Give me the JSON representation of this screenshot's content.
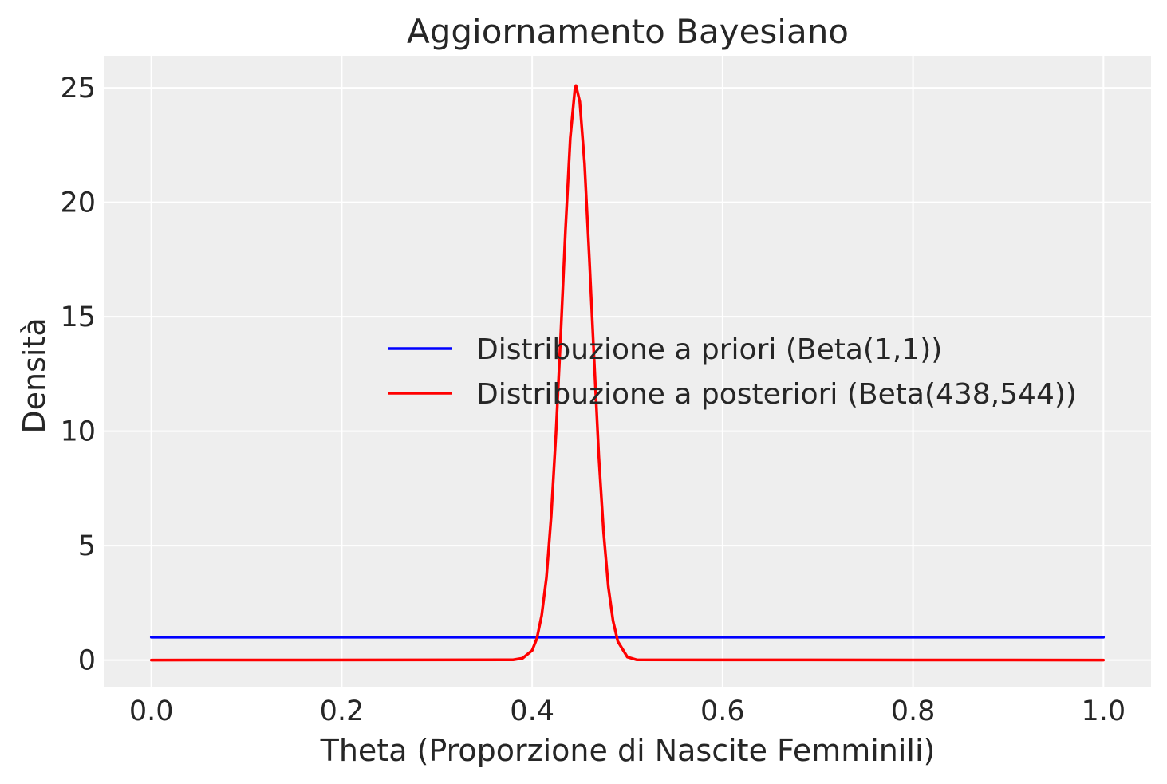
{
  "chart_data": {
    "type": "line",
    "title": "Aggiornamento Bayesiano",
    "xlabel": "Theta (Proporzione di Nascite Femminili)",
    "ylabel": "Densità",
    "xlim": [
      -0.05,
      1.05
    ],
    "ylim": [
      -1.2,
      26.4
    ],
    "x_ticks": [
      0.0,
      0.2,
      0.4,
      0.6,
      0.8,
      1.0
    ],
    "x_tick_labels": [
      "0.0",
      "0.2",
      "0.4",
      "0.6",
      "0.8",
      "1.0"
    ],
    "y_ticks": [
      0,
      5,
      10,
      15,
      20,
      25
    ],
    "y_tick_labels": [
      "0",
      "5",
      "10",
      "15",
      "20",
      "25"
    ],
    "grid": true,
    "legend_position": "center-right",
    "background_color": "#eeeeee",
    "grid_color": "#ffffff",
    "series": [
      {
        "name": "Distribuzione a priori (Beta(1,1))",
        "color": "#0000ff",
        "x": [
          0.0,
          1.0
        ],
        "y": [
          1.0,
          1.0
        ]
      },
      {
        "name": "Distribuzione a posteriori (Beta(438,544))",
        "color": "#ff0000",
        "x": [
          0.0,
          0.38,
          0.39,
          0.4,
          0.405,
          0.41,
          0.415,
          0.42,
          0.425,
          0.43,
          0.435,
          0.44,
          0.445,
          0.446,
          0.45,
          0.455,
          0.46,
          0.465,
          0.47,
          0.475,
          0.48,
          0.485,
          0.49,
          0.5,
          0.51,
          1.0
        ],
        "y": [
          0.0,
          0.01,
          0.08,
          0.42,
          0.95,
          1.95,
          3.6,
          6.3,
          9.9,
          14.2,
          18.8,
          22.8,
          25.0,
          25.1,
          24.4,
          21.7,
          17.6,
          13.2,
          8.9,
          5.6,
          3.2,
          1.7,
          0.81,
          0.13,
          0.01,
          0.0
        ]
      }
    ]
  }
}
